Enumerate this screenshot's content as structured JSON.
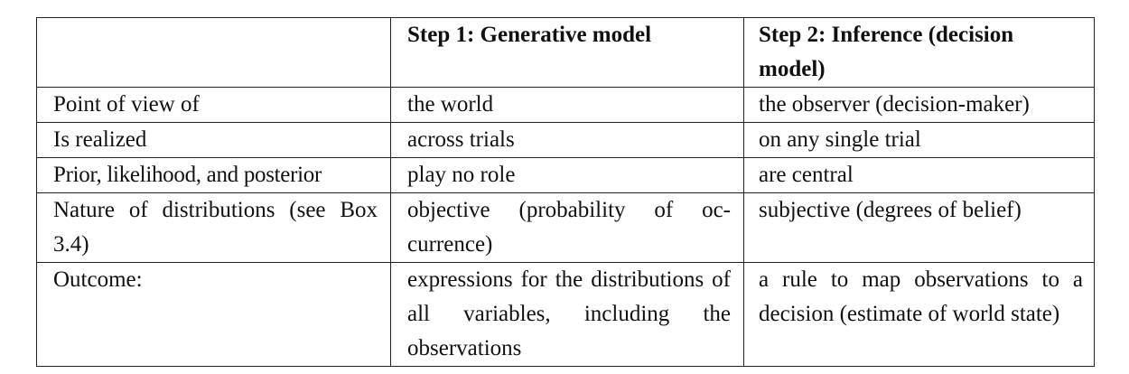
{
  "table": {
    "headers": [
      "",
      "Step 1: Generative model",
      "Step 2: Inference (decision model)"
    ],
    "rows": [
      {
        "label": "Point of view of",
        "generative": "the world",
        "inference": "the observer (decision-maker)"
      },
      {
        "label": "Is realized",
        "generative": "across trials",
        "inference": "on any single trial"
      },
      {
        "label": "Prior, likelihood, and posterior",
        "generative": "play no role",
        "inference": "are central"
      },
      {
        "label": "Nature of distributions (see Box 3.4)",
        "generative": "objective (probability of oc­currence)",
        "inference": "subjective (degrees of belief)"
      },
      {
        "label": "Outcome:",
        "generative": "expressions for the distribu­tions of all variables, includ­ing the observations",
        "inference": "a rule to map observations to a decision (estimate of world state)"
      }
    ]
  }
}
